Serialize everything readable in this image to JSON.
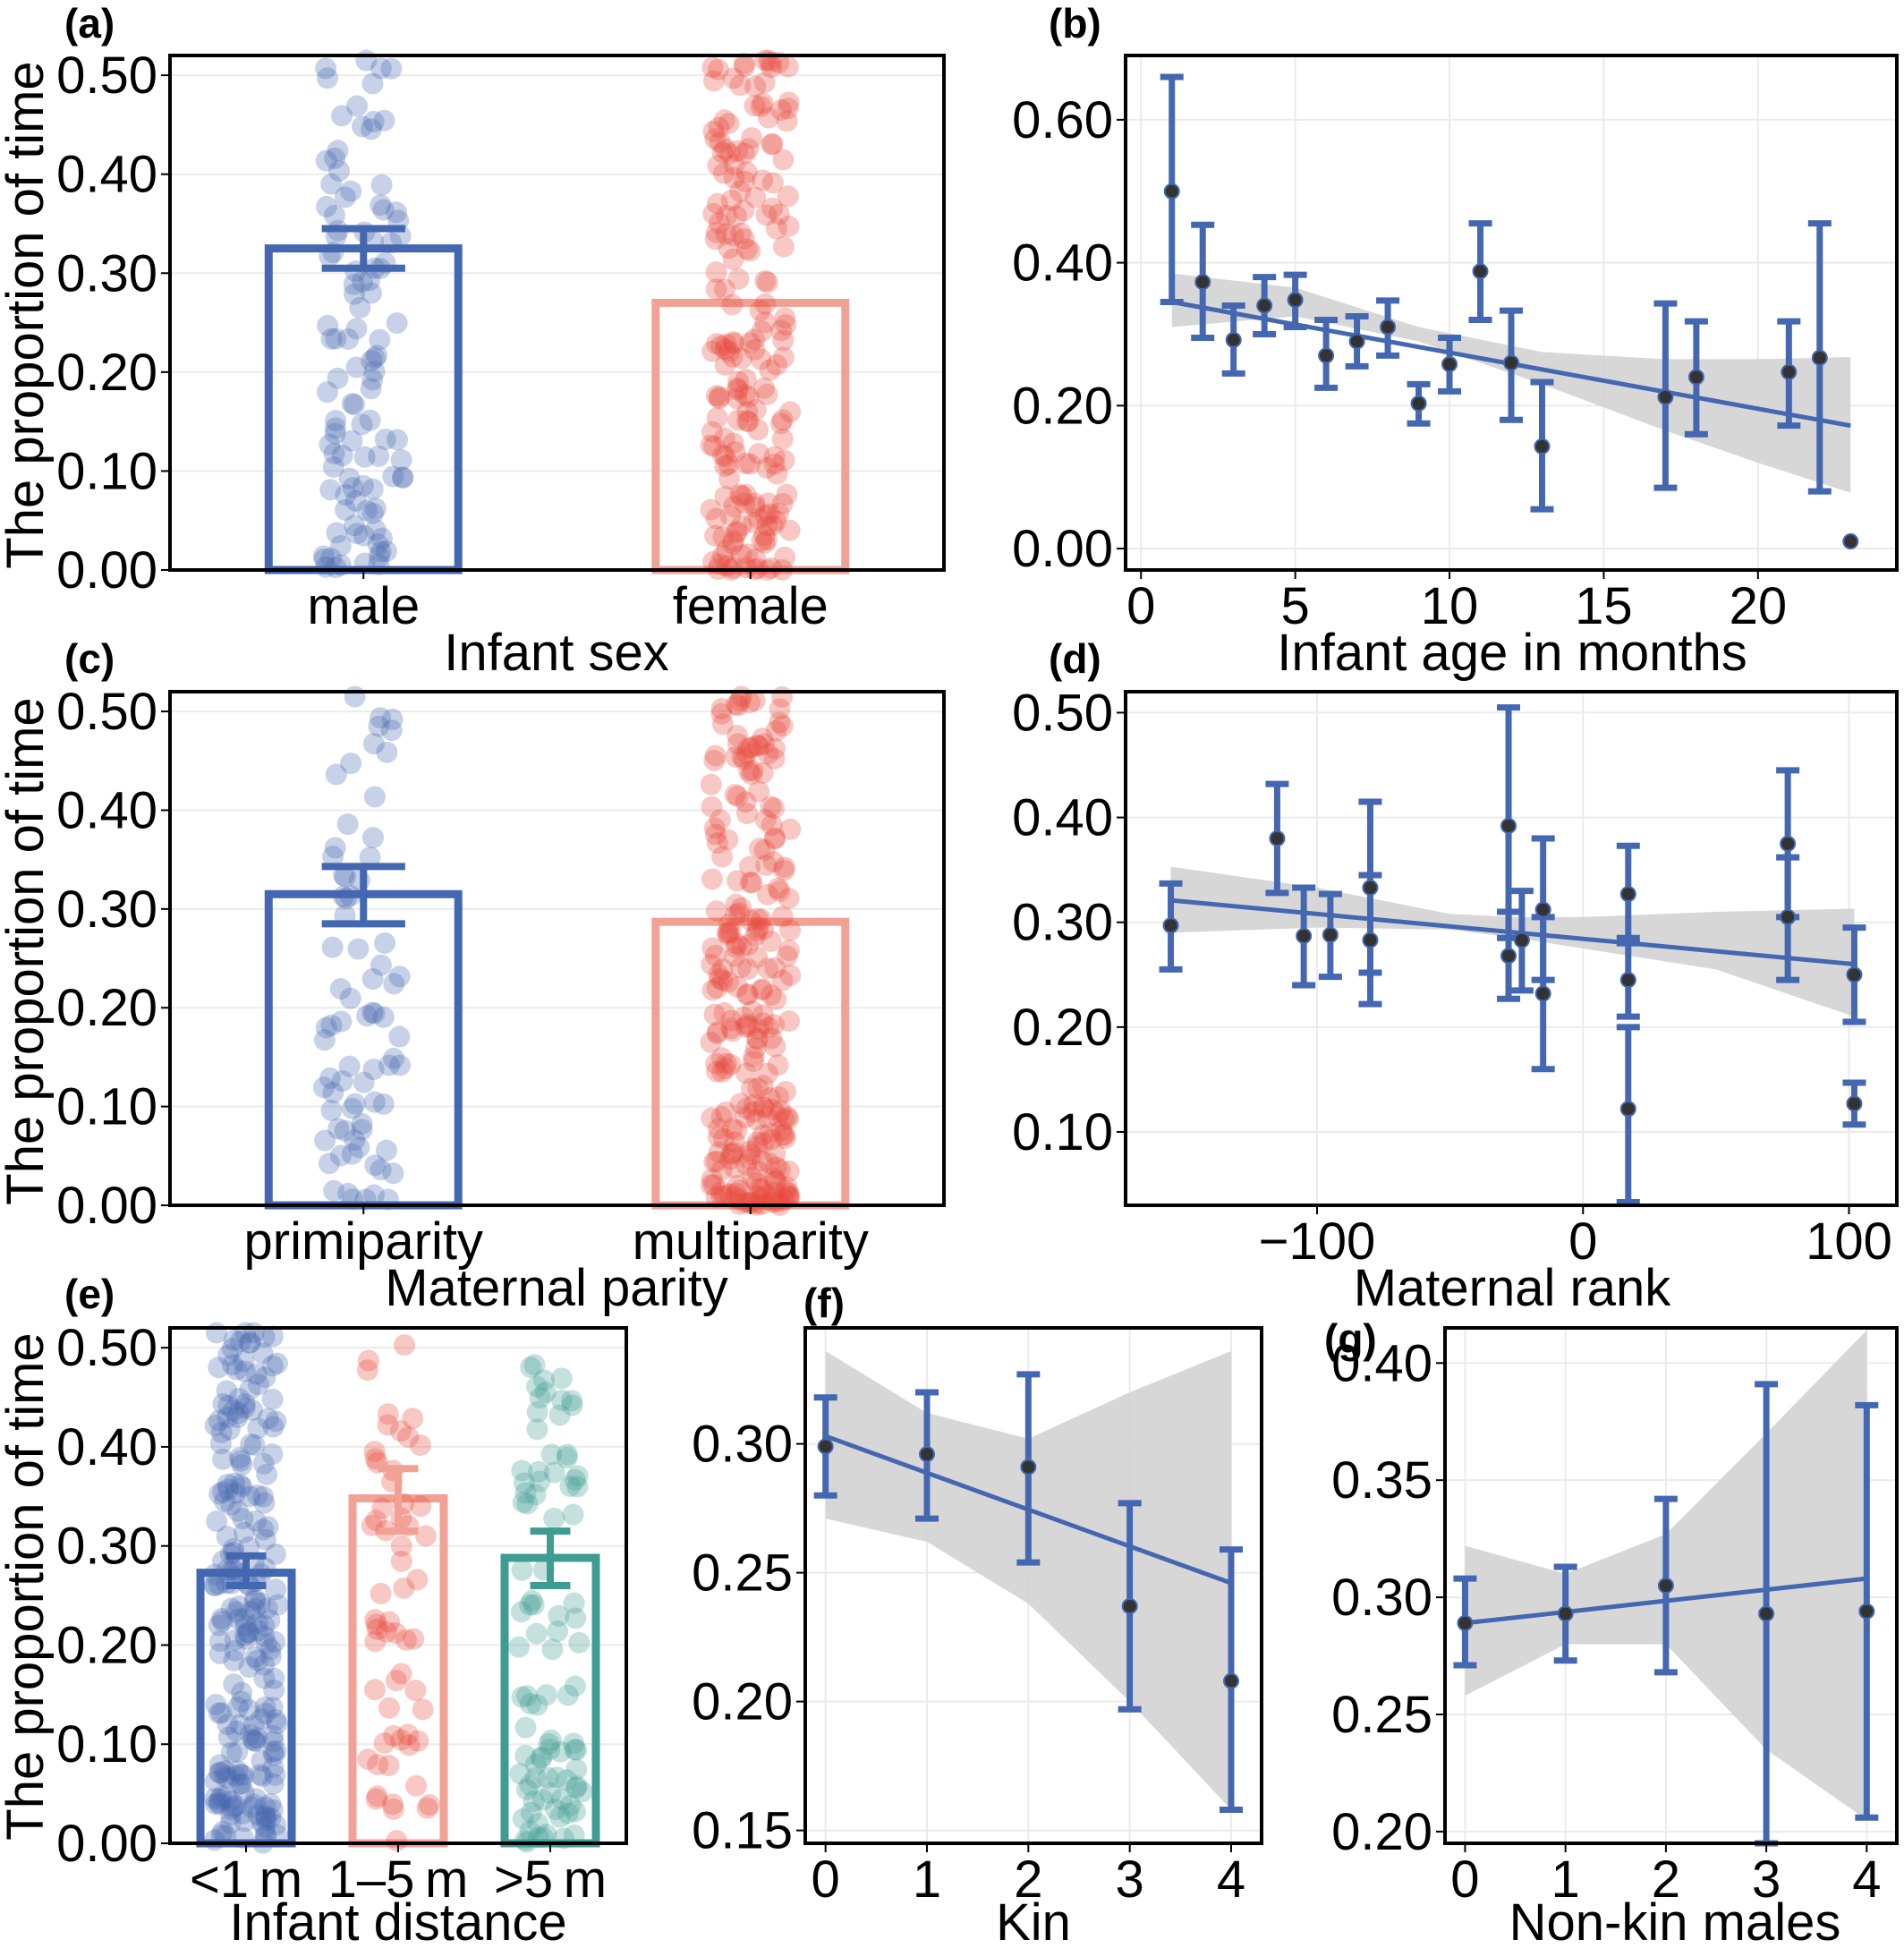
{
  "figure": {
    "colors": {
      "blue": "#4467b1",
      "red": "#e8493b",
      "salmon": "#f2a195",
      "teal": "#3f9c93",
      "ribbon": "#d3d3d3",
      "point": "#333333"
    }
  },
  "chart_data": [
    {
      "id": "a",
      "panel_label": "(a)",
      "type": "bar",
      "xlabel": "Infant sex",
      "ylabel": "The proportion of time",
      "ylim": [
        0,
        0.52
      ],
      "yticks": [
        0,
        0.1,
        0.2,
        0.3,
        0.4,
        0.5
      ],
      "ytick_labels": [
        "0.00",
        "0.10",
        "0.20",
        "0.30",
        "0.40",
        "0.50"
      ],
      "grid": true,
      "categories": [
        "male",
        "female"
      ],
      "values": [
        0.325,
        0.27
      ],
      "se_error": [
        [
          0.305,
          0.345
        ],
        null
      ],
      "bar_colors": [
        "blue",
        "salmon"
      ],
      "jitter": [
        {
          "n": 110,
          "color": "blue",
          "opacity": 0.3,
          "seed": 11
        },
        {
          "n": 200,
          "color": "red",
          "opacity": 0.3,
          "seed": 12
        }
      ]
    },
    {
      "id": "b",
      "panel_label": "(b)",
      "type": "scatter",
      "xlabel": "Infant age in months",
      "ylabel": "",
      "xlim": [
        -0.5,
        24.5
      ],
      "ylim": [
        -0.03,
        0.69
      ],
      "xticks": [
        0,
        5,
        10,
        15,
        20
      ],
      "xtick_labels": [
        "0",
        "5",
        "10",
        "15",
        "20"
      ],
      "yticks": [
        0,
        0.2,
        0.4,
        0.6
      ],
      "ytick_labels": [
        "0.00",
        "0.20",
        "0.40",
        "0.60"
      ],
      "grid": true,
      "points": [
        {
          "x": 1,
          "y": 0.5,
          "lo": 0.345,
          "hi": 0.66
        },
        {
          "x": 2,
          "y": 0.373,
          "lo": 0.295,
          "hi": 0.453
        },
        {
          "x": 3,
          "y": 0.292,
          "lo": 0.245,
          "hi": 0.34
        },
        {
          "x": 4,
          "y": 0.34,
          "lo": 0.3,
          "hi": 0.38
        },
        {
          "x": 5,
          "y": 0.348,
          "lo": 0.31,
          "hi": 0.383
        },
        {
          "x": 6,
          "y": 0.27,
          "lo": 0.225,
          "hi": 0.32
        },
        {
          "x": 7,
          "y": 0.29,
          "lo": 0.255,
          "hi": 0.325
        },
        {
          "x": 8,
          "y": 0.31,
          "lo": 0.27,
          "hi": 0.347
        },
        {
          "x": 9,
          "y": 0.203,
          "lo": 0.175,
          "hi": 0.23
        },
        {
          "x": 10,
          "y": 0.258,
          "lo": 0.22,
          "hi": 0.295
        },
        {
          "x": 11,
          "y": 0.388,
          "lo": 0.32,
          "hi": 0.455
        },
        {
          "x": 12,
          "y": 0.26,
          "lo": 0.18,
          "hi": 0.333
        },
        {
          "x": 13,
          "y": 0.143,
          "lo": 0.055,
          "hi": 0.233
        },
        {
          "x": 17,
          "y": 0.212,
          "lo": 0.085,
          "hi": 0.343
        },
        {
          "x": 18,
          "y": 0.24,
          "lo": 0.16,
          "hi": 0.318
        },
        {
          "x": 21,
          "y": 0.247,
          "lo": 0.172,
          "hi": 0.318
        },
        {
          "x": 22,
          "y": 0.267,
          "lo": 0.08,
          "hi": 0.455
        },
        {
          "x": 23,
          "y": 0.01,
          "lo": null,
          "hi": null
        }
      ],
      "fit": {
        "x": [
          1,
          23
        ],
        "y": [
          0.345,
          0.172
        ]
      },
      "ribbon": {
        "x": [
          1,
          5,
          9,
          13,
          17,
          20,
          23
        ],
        "lo": [
          0.31,
          0.325,
          0.29,
          0.23,
          0.165,
          0.12,
          0.078
        ],
        "hi": [
          0.385,
          0.365,
          0.31,
          0.275,
          0.265,
          0.265,
          0.268
        ]
      }
    },
    {
      "id": "c",
      "panel_label": "(c)",
      "type": "bar",
      "xlabel": "Maternal parity",
      "ylabel": "The proportion of time",
      "ylim": [
        0,
        0.52
      ],
      "yticks": [
        0,
        0.1,
        0.2,
        0.3,
        0.4,
        0.5
      ],
      "ytick_labels": [
        "0.00",
        "0.10",
        "0.20",
        "0.30",
        "0.40",
        "0.50"
      ],
      "grid": true,
      "categories": [
        "primiparity",
        "multiparity"
      ],
      "values": [
        0.315,
        0.287
      ],
      "se_error": [
        [
          0.285,
          0.343
        ],
        null
      ],
      "bar_colors": [
        "blue",
        "salmon"
      ],
      "jitter": [
        {
          "n": 75,
          "color": "blue",
          "opacity": 0.3,
          "seed": 21
        },
        {
          "n": 260,
          "color": "red",
          "opacity": 0.3,
          "seed": 22
        }
      ]
    },
    {
      "id": "d",
      "panel_label": "(d)",
      "type": "scatter",
      "xlabel": "Maternal rank",
      "ylabel": "",
      "xlim": [
        -172,
        118
      ],
      "ylim": [
        0.03,
        0.52
      ],
      "xticks": [
        -100,
        0,
        100
      ],
      "xtick_labels": [
        "−100",
        "0",
        "100"
      ],
      "yticks": [
        0.1,
        0.2,
        0.3,
        0.4,
        0.5
      ],
      "ytick_labels": [
        "0.10",
        "0.20",
        "0.30",
        "0.40",
        "0.50"
      ],
      "grid": true,
      "points": [
        {
          "x": -155,
          "y": 0.297,
          "lo": 0.255,
          "hi": 0.337
        },
        {
          "x": -115,
          "y": 0.38,
          "lo": 0.328,
          "hi": 0.432
        },
        {
          "x": -105,
          "y": 0.287,
          "lo": 0.24,
          "hi": 0.333
        },
        {
          "x": -95,
          "y": 0.288,
          "lo": 0.248,
          "hi": 0.327
        },
        {
          "x": -80,
          "y": 0.333,
          "lo": 0.252,
          "hi": 0.415
        },
        {
          "x": -80,
          "y": 0.283,
          "lo": 0.222,
          "hi": 0.345
        },
        {
          "x": -28,
          "y": 0.392,
          "lo": 0.285,
          "hi": 0.505
        },
        {
          "x": -28,
          "y": 0.268,
          "lo": 0.227,
          "hi": 0.31
        },
        {
          "x": -23,
          "y": 0.283,
          "lo": 0.235,
          "hi": 0.33
        },
        {
          "x": -15,
          "y": 0.312,
          "lo": 0.245,
          "hi": 0.38
        },
        {
          "x": -15,
          "y": 0.232,
          "lo": 0.16,
          "hi": 0.305
        },
        {
          "x": 17,
          "y": 0.327,
          "lo": 0.28,
          "hi": 0.373
        },
        {
          "x": 17,
          "y": 0.245,
          "lo": 0.21,
          "hi": 0.285
        },
        {
          "x": 17,
          "y": 0.122,
          "lo": 0.033,
          "hi": 0.2
        },
        {
          "x": 77,
          "y": 0.375,
          "lo": 0.305,
          "hi": 0.445
        },
        {
          "x": 77,
          "y": 0.305,
          "lo": 0.245,
          "hi": 0.362
        },
        {
          "x": 102,
          "y": 0.25,
          "lo": 0.205,
          "hi": 0.295
        },
        {
          "x": 102,
          "y": 0.127,
          "lo": 0.107,
          "hi": 0.147
        }
      ],
      "fit": {
        "x": [
          -155,
          102
        ],
        "y": [
          0.321,
          0.26
        ]
      },
      "ribbon": {
        "x": [
          -155,
          -100,
          -50,
          -25,
          0,
          50,
          102
        ],
        "lo": [
          0.29,
          0.295,
          0.293,
          0.285,
          0.275,
          0.255,
          0.21
        ],
        "hi": [
          0.353,
          0.333,
          0.308,
          0.305,
          0.305,
          0.31,
          0.313
        ]
      }
    },
    {
      "id": "e",
      "panel_label": "(e)",
      "type": "bar",
      "xlabel": "Infant distance",
      "ylabel": "The proportion of time",
      "ylim": [
        0,
        0.52
      ],
      "yticks": [
        0,
        0.1,
        0.2,
        0.3,
        0.4,
        0.5
      ],
      "ytick_labels": [
        "0.00",
        "0.10",
        "0.20",
        "0.30",
        "0.40",
        "0.50"
      ],
      "grid": true,
      "categories": [
        "<1 m",
        "1–5 m",
        ">5 m"
      ],
      "values": [
        0.273,
        0.348,
        0.288
      ],
      "se_error": [
        [
          0.26,
          0.29
        ],
        [
          0.315,
          0.378
        ],
        [
          0.26,
          0.315
        ]
      ],
      "bar_colors": [
        "blue",
        "salmon",
        "teal"
      ],
      "jitter": [
        {
          "n": 230,
          "color": "blue",
          "opacity": 0.3,
          "seed": 31
        },
        {
          "n": 60,
          "color": "red",
          "opacity": 0.3,
          "seed": 32
        },
        {
          "n": 95,
          "color": "teal",
          "opacity": 0.3,
          "seed": 33
        }
      ]
    },
    {
      "id": "f",
      "panel_label": "(f)",
      "type": "scatter",
      "xlabel": "Kin",
      "ylabel": "",
      "xlim": [
        -0.2,
        4.3
      ],
      "ylim": [
        0.145,
        0.345
      ],
      "xticks": [
        0,
        1,
        2,
        3,
        4
      ],
      "xtick_labels": [
        "0",
        "1",
        "2",
        "3",
        "4"
      ],
      "yticks": [
        0.15,
        0.2,
        0.25,
        0.3
      ],
      "ytick_labels": [
        "0.15",
        "0.20",
        "0.25",
        "0.30"
      ],
      "grid": true,
      "points": [
        {
          "x": 0,
          "y": 0.299,
          "lo": 0.28,
          "hi": 0.318
        },
        {
          "x": 1,
          "y": 0.296,
          "lo": 0.271,
          "hi": 0.32
        },
        {
          "x": 2,
          "y": 0.291,
          "lo": 0.254,
          "hi": 0.327
        },
        {
          "x": 3,
          "y": 0.237,
          "lo": 0.197,
          "hi": 0.277
        },
        {
          "x": 4,
          "y": 0.208,
          "lo": 0.158,
          "hi": 0.259
        }
      ],
      "fit": {
        "x": [
          0,
          4
        ],
        "y": [
          0.303,
          0.246
        ]
      },
      "ribbon": {
        "x": [
          0,
          1,
          2,
          3,
          4
        ],
        "lo": [
          0.271,
          0.262,
          0.238,
          0.2,
          0.158
        ],
        "hi": [
          0.336,
          0.312,
          0.302,
          0.32,
          0.336
        ]
      }
    },
    {
      "id": "g",
      "panel_label": "(g)",
      "type": "scatter",
      "xlabel": "Non-kin males",
      "ylabel": "",
      "xlim": [
        -0.2,
        4.3
      ],
      "ylim": [
        0.195,
        0.415
      ],
      "xticks": [
        0,
        1,
        2,
        3,
        4
      ],
      "xtick_labels": [
        "0",
        "1",
        "2",
        "3",
        "4"
      ],
      "yticks": [
        0.2,
        0.25,
        0.3,
        0.35,
        0.4
      ],
      "ytick_labels": [
        "0.20",
        "0.25",
        "0.30",
        "0.35",
        "0.40"
      ],
      "grid": true,
      "points": [
        {
          "x": 0,
          "y": 0.289,
          "lo": 0.271,
          "hi": 0.308
        },
        {
          "x": 1,
          "y": 0.293,
          "lo": 0.273,
          "hi": 0.313
        },
        {
          "x": 2,
          "y": 0.305,
          "lo": 0.268,
          "hi": 0.342
        },
        {
          "x": 3,
          "y": 0.293,
          "lo": 0.195,
          "hi": 0.391
        },
        {
          "x": 4,
          "y": 0.294,
          "lo": 0.206,
          "hi": 0.382
        }
      ],
      "fit": {
        "x": [
          0,
          4
        ],
        "y": [
          0.289,
          0.308
        ]
      },
      "ribbon": {
        "x": [
          0,
          1,
          2,
          3,
          4
        ],
        "lo": [
          0.258,
          0.28,
          0.28,
          0.235,
          0.205
        ],
        "hi": [
          0.322,
          0.31,
          0.327,
          0.37,
          0.414
        ]
      }
    }
  ]
}
